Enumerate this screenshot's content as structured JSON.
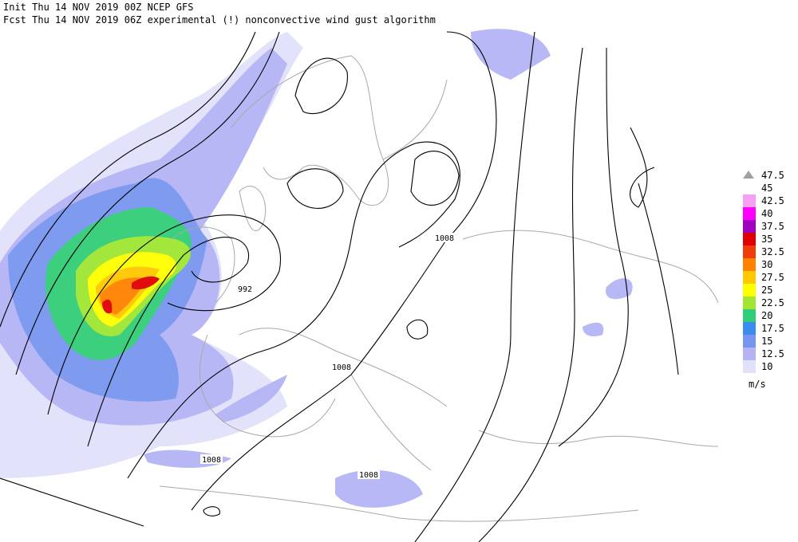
{
  "header": {
    "line1": "Init  Thu 14 NOV 2019 00Z  NCEP GFS",
    "line2": "Fcst Thu 14 NOV 2019 06Z  experimental (!) nonconvective wind gust algorithm"
  },
  "legend": {
    "levels": [
      {
        "label": "47.5",
        "color": "#a0a0a0"
      },
      {
        "label": "45",
        "color": "#ffffff"
      },
      {
        "label": "42.5",
        "color": "#f5a0f5"
      },
      {
        "label": "40",
        "color": "#ff00ff"
      },
      {
        "label": "37.5",
        "color": "#a000c0"
      },
      {
        "label": "35",
        "color": "#e00000"
      },
      {
        "label": "32.5",
        "color": "#f03c0a"
      },
      {
        "label": "30",
        "color": "#ff8200"
      },
      {
        "label": "27.5",
        "color": "#ffc800"
      },
      {
        "label": "25",
        "color": "#ffff00"
      },
      {
        "label": "22.5",
        "color": "#a0e632"
      },
      {
        "label": "20",
        "color": "#32cd78"
      },
      {
        "label": "17.5",
        "color": "#3c8cf0"
      },
      {
        "label": "15",
        "color": "#7896f0"
      },
      {
        "label": "12.5",
        "color": "#b4b4f5"
      },
      {
        "label": "10",
        "color": "#e1e1fa"
      }
    ],
    "unit": "m/s"
  },
  "isobar_labels": [
    "1008",
    "992",
    "1008",
    "1008",
    "1008"
  ]
}
